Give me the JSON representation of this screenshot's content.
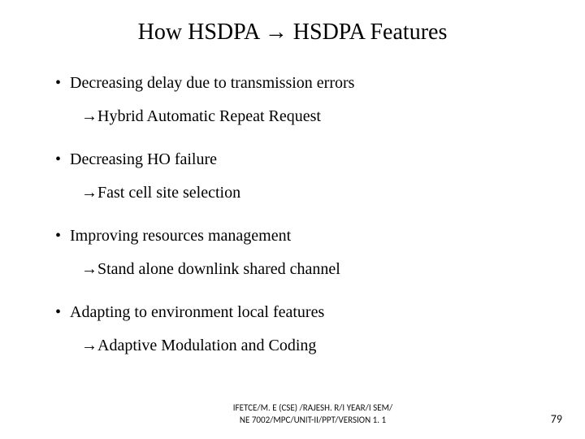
{
  "title": "How HSDPA → HSDPA Features",
  "items": [
    {
      "bullet": "Decreasing delay due to transmission errors",
      "sub": "→Hybrid Automatic Repeat Request"
    },
    {
      "bullet": "Decreasing HO failure",
      "sub": "→Fast cell site selection"
    },
    {
      "bullet": "Improving resources management",
      "sub": "→Stand alone downlink shared channel"
    },
    {
      "bullet": "Adapting to environment local features",
      "sub": "→Adaptive Modulation and Coding"
    }
  ],
  "footer_line1": "IFETCE/M. E (CSE) /RAJESH. R/I YEAR/I SEM/",
  "footer_line2": "NE 7002/MPC/UNIT-II/PPT/VERSION 1. 1",
  "page_number": "79",
  "bullet_char": "•",
  "colors": {
    "background": "#ffffff",
    "text": "#000000",
    "footer_text": "#111111"
  },
  "fontsizes": {
    "title": 28,
    "body": 20,
    "footer": 11,
    "pagenum": 14
  }
}
